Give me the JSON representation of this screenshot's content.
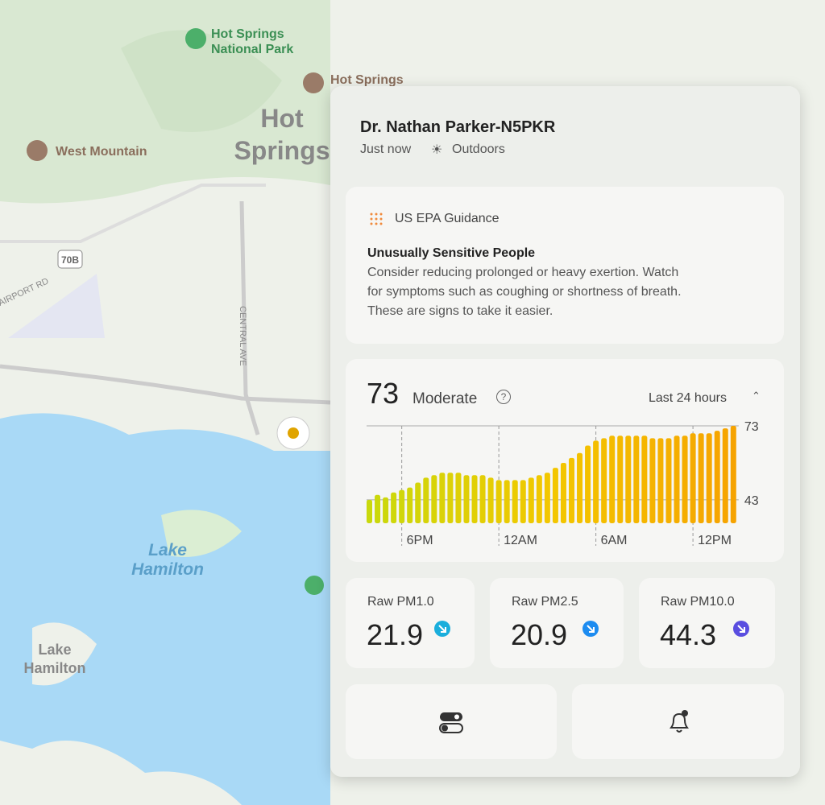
{
  "map": {
    "park": [
      "Hot Springs",
      "National Park"
    ],
    "peak": "Hot Springs",
    "city": [
      "Hot",
      "Springs"
    ],
    "mountain": "West Mountain",
    "route": "70B",
    "road1": "AIRPORT RD",
    "road2": "CENTRAL AVE",
    "lake": [
      "Lake",
      "Hamilton"
    ],
    "town": [
      "Lake",
      "Hamilton"
    ]
  },
  "popup": {
    "title": "Dr. Nathan Parker-N5PKR",
    "time": "Just now",
    "environment": "Outdoors",
    "guidance": {
      "heading": "US EPA Guidance",
      "group": "Unusually Sensitive People",
      "text": [
        "Consider reducing prolonged or heavy exertion. Watch",
        "for symptoms such as coughing or shortness of breath.",
        "These are signs to take it easier."
      ]
    },
    "aqi": {
      "value": 73,
      "category": "Moderate",
      "range": "Last 24 hours"
    },
    "metrics": [
      {
        "label": "Raw PM1.0",
        "value": "21.9"
      },
      {
        "label": "Raw PM2.5",
        "value": "20.9"
      },
      {
        "label": "Raw PM10.0",
        "value": "44.3"
      }
    ]
  },
  "chart_data": {
    "type": "bar",
    "categories": [
      null,
      null,
      null,
      null,
      "6PM",
      null,
      null,
      null,
      null,
      null,
      null,
      null,
      null,
      null,
      null,
      null,
      "12AM",
      null,
      null,
      null,
      null,
      null,
      null,
      null,
      null,
      null,
      null,
      null,
      "6AM",
      null,
      null,
      null,
      null,
      null,
      null,
      null,
      null,
      null,
      null,
      null,
      "12PM",
      null,
      null,
      null,
      null,
      null
    ],
    "values": [
      43,
      45,
      44,
      46,
      47,
      48,
      50,
      52,
      53,
      54,
      54,
      54,
      53,
      53,
      53,
      52,
      51,
      51,
      51,
      51,
      52,
      53,
      54,
      56,
      58,
      60,
      62,
      65,
      67,
      68,
      69,
      69,
      69,
      69,
      69,
      68,
      68,
      68,
      69,
      69,
      70,
      70,
      70,
      71,
      72,
      73
    ],
    "colors": [
      "#c9d90c",
      "#f3c700",
      "#f6a300"
    ],
    "ylim": [
      33.5,
      73
    ],
    "yticks": [
      43,
      73
    ],
    "grid": true
  }
}
